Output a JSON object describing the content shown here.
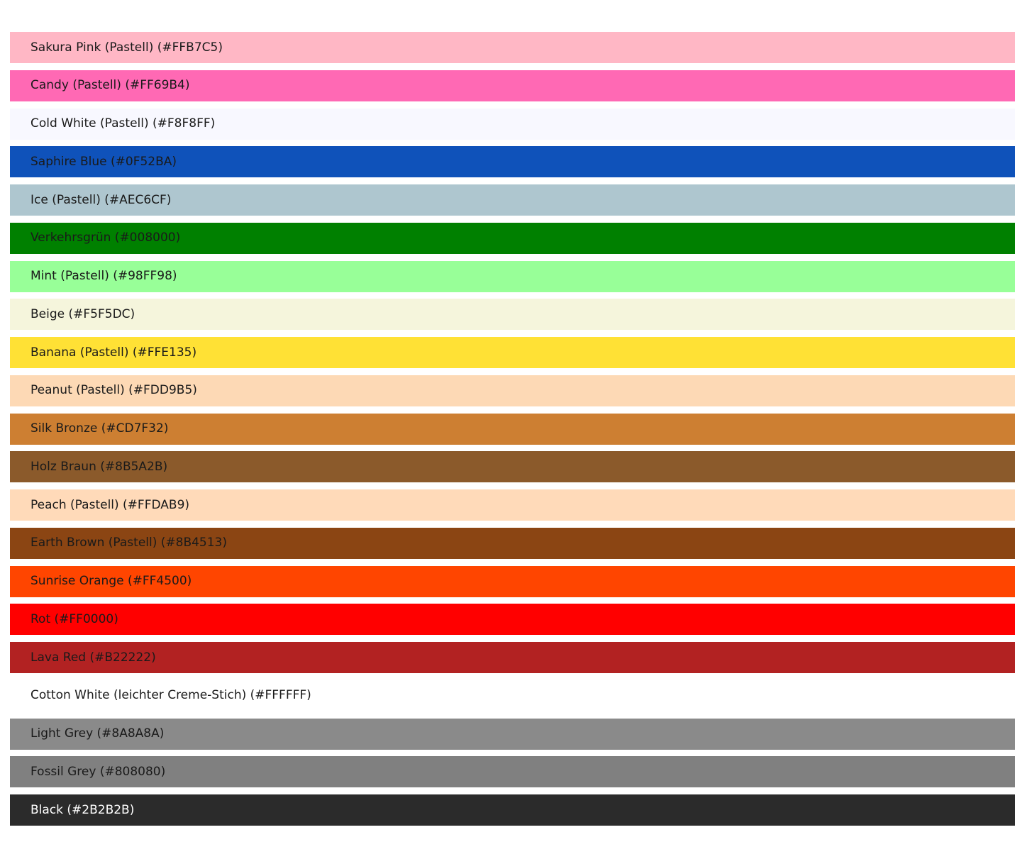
{
  "page": {
    "background": "#FFFFFF",
    "default_text_color": "#1A1A1A"
  },
  "palette": {
    "rows": [
      {
        "label": "Sakura Pink (Pastell) (#FFB7C5)",
        "color": "#FFB7C5",
        "text_color": "#1A1A1A"
      },
      {
        "label": "Candy (Pastell) (#FF69B4)",
        "color": "#FF69B4",
        "text_color": "#1A1A1A"
      },
      {
        "label": "Cold White (Pastell) (#F8F8FF)",
        "color": "#F8F8FF",
        "text_color": "#1A1A1A"
      },
      {
        "label": "Saphire Blue (#0F52BA)",
        "color": "#0F52BA",
        "text_color": "#1A1A1A"
      },
      {
        "label": "Ice (Pastell) (#AEC6CF)",
        "color": "#AEC6CF",
        "text_color": "#1A1A1A"
      },
      {
        "label": "Verkehrsgrün (#008000)",
        "color": "#008000",
        "text_color": "#1A1A1A"
      },
      {
        "label": "Mint (Pastell) (#98FF98)",
        "color": "#98FF98",
        "text_color": "#1A1A1A"
      },
      {
        "label": "Beige (#F5F5DC)",
        "color": "#F5F5DC",
        "text_color": "#1A1A1A"
      },
      {
        "label": "Banana (Pastell) (#FFE135)",
        "color": "#FFE135",
        "text_color": "#1A1A1A"
      },
      {
        "label": "Peanut (Pastell) (#FDD9B5)",
        "color": "#FDD9B5",
        "text_color": "#1A1A1A"
      },
      {
        "label": "Silk Bronze (#CD7F32)",
        "color": "#CD7F32",
        "text_color": "#1A1A1A"
      },
      {
        "label": "Holz Braun (#8B5A2B)",
        "color": "#8B5A2B",
        "text_color": "#1A1A1A"
      },
      {
        "label": "Peach (Pastell) (#FFDAB9)",
        "color": "#FFDAB9",
        "text_color": "#1A1A1A"
      },
      {
        "label": "Earth Brown (Pastell) (#8B4513)",
        "color": "#8B4513",
        "text_color": "#1A1A1A"
      },
      {
        "label": "Sunrise Orange (#FF4500)",
        "color": "#FF4500",
        "text_color": "#1A1A1A"
      },
      {
        "label": "Rot (#FF0000)",
        "color": "#FF0000",
        "text_color": "#1A1A1A"
      },
      {
        "label": "Lava Red (#B22222)",
        "color": "#B22222",
        "text_color": "#1A1A1A"
      },
      {
        "label": "Cotton White (leichter Creme-Stich) (#FFFFFF)",
        "color": "#FFFFFF",
        "text_color": "#1A1A1A"
      },
      {
        "label": "Light Grey (#8A8A8A)",
        "color": "#8A8A8A",
        "text_color": "#1A1A1A"
      },
      {
        "label": "Fossil Grey (#808080)",
        "color": "#808080",
        "text_color": "#1A1A1A"
      },
      {
        "label": "Black (#2B2B2B)",
        "color": "#2B2B2B",
        "text_color": "#FFFFFF"
      }
    ]
  }
}
